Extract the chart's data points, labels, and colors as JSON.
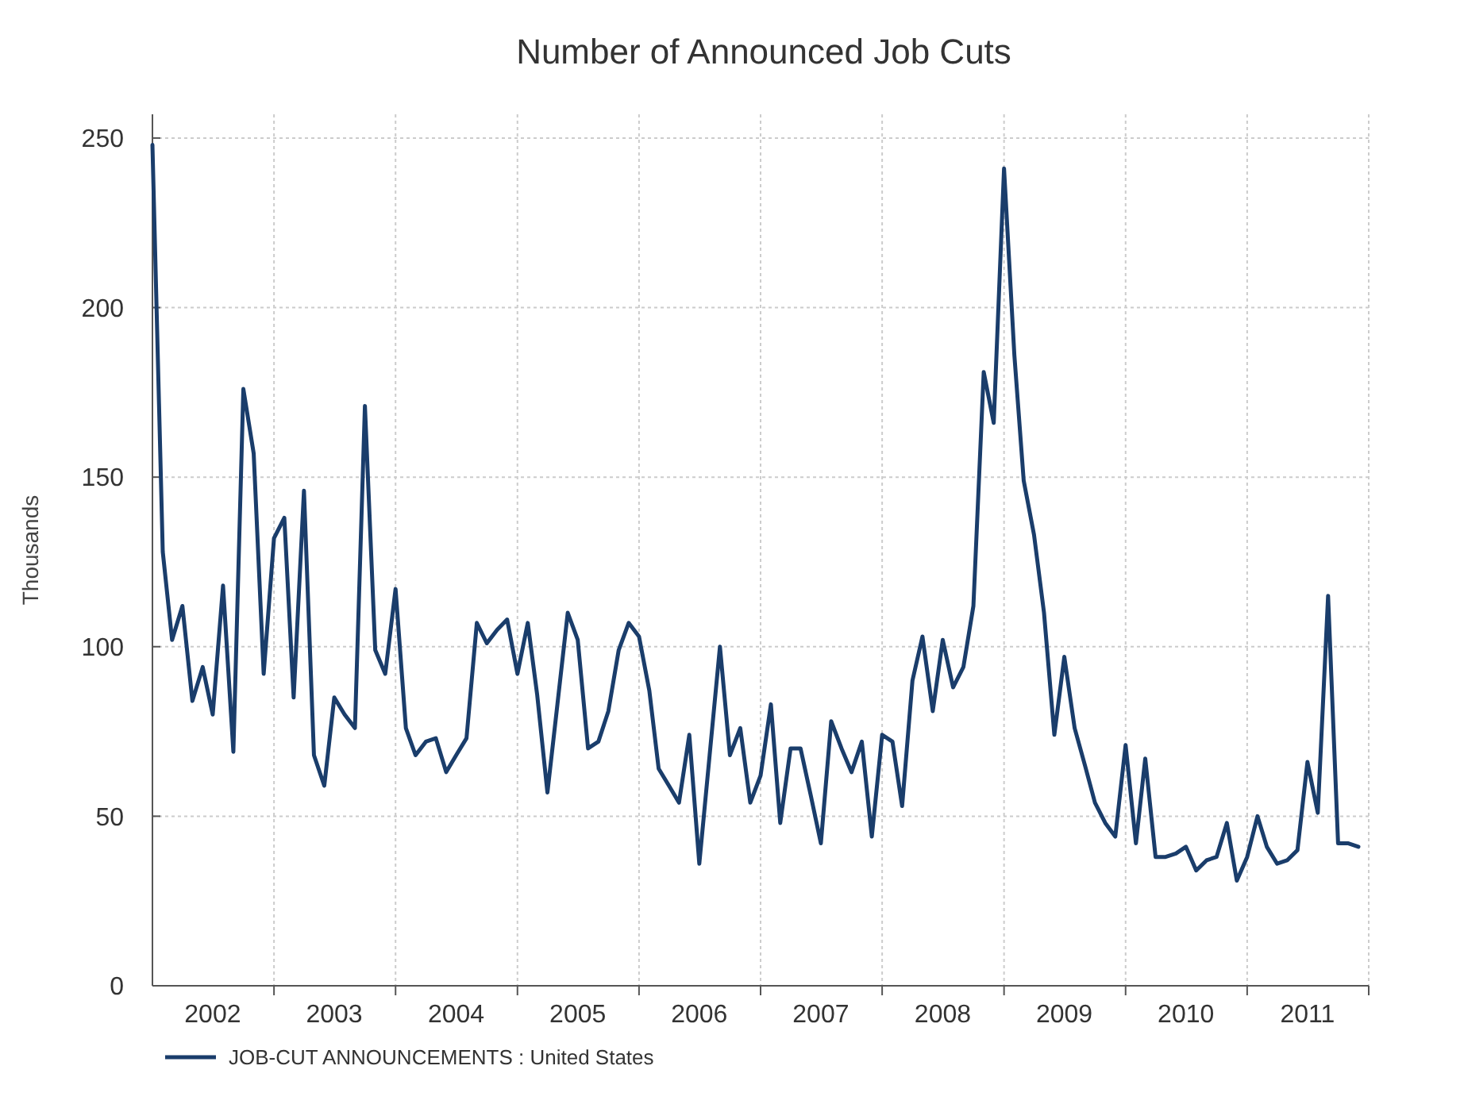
{
  "chart_data": {
    "type": "line",
    "title": "Number of Announced Job Cuts",
    "ylabel": "Thousands",
    "x": [
      "2002-01",
      "2002-02",
      "2002-03",
      "2002-04",
      "2002-05",
      "2002-06",
      "2002-07",
      "2002-08",
      "2002-09",
      "2002-10",
      "2002-11",
      "2002-12",
      "2003-01",
      "2003-02",
      "2003-03",
      "2003-04",
      "2003-05",
      "2003-06",
      "2003-07",
      "2003-08",
      "2003-09",
      "2003-10",
      "2003-11",
      "2003-12",
      "2004-01",
      "2004-02",
      "2004-03",
      "2004-04",
      "2004-05",
      "2004-06",
      "2004-07",
      "2004-08",
      "2004-09",
      "2004-10",
      "2004-11",
      "2004-12",
      "2005-01",
      "2005-02",
      "2005-03",
      "2005-04",
      "2005-05",
      "2005-06",
      "2005-07",
      "2005-08",
      "2005-09",
      "2005-10",
      "2005-11",
      "2005-12",
      "2006-01",
      "2006-02",
      "2006-03",
      "2006-04",
      "2006-05",
      "2006-06",
      "2006-07",
      "2006-08",
      "2006-09",
      "2006-10",
      "2006-11",
      "2006-12",
      "2007-01",
      "2007-02",
      "2007-03",
      "2007-04",
      "2007-05",
      "2007-06",
      "2007-07",
      "2007-08",
      "2007-09",
      "2007-10",
      "2007-11",
      "2007-12",
      "2008-01",
      "2008-02",
      "2008-03",
      "2008-04",
      "2008-05",
      "2008-06",
      "2008-07",
      "2008-08",
      "2008-09",
      "2008-10",
      "2008-11",
      "2008-12",
      "2009-01",
      "2009-02",
      "2009-03",
      "2009-04",
      "2009-05",
      "2009-06",
      "2009-07",
      "2009-08",
      "2009-09",
      "2009-10",
      "2009-11",
      "2009-12",
      "2010-01",
      "2010-02",
      "2010-03",
      "2010-04",
      "2010-05",
      "2010-06",
      "2010-07",
      "2010-08",
      "2010-09",
      "2010-10",
      "2010-11",
      "2010-12",
      "2011-01",
      "2011-02",
      "2011-03",
      "2011-04",
      "2011-05",
      "2011-06",
      "2011-07",
      "2011-08",
      "2011-09",
      "2011-10",
      "2011-11",
      "2011-12"
    ],
    "series": [
      {
        "name": "JOB-CUT ANNOUNCEMENTS : United States",
        "color": "#1a3d6b",
        "values": [
          248,
          128,
          102,
          112,
          84,
          94,
          80,
          118,
          69,
          176,
          157,
          92,
          132,
          138,
          85,
          146,
          68,
          59,
          85,
          80,
          76,
          171,
          99,
          92,
          117,
          76,
          68,
          72,
          73,
          63,
          68,
          73,
          107,
          101,
          105,
          108,
          92,
          107,
          86,
          57,
          83,
          110,
          102,
          70,
          72,
          81,
          99,
          107,
          103,
          87,
          64,
          59,
          54,
          74,
          36,
          68,
          100,
          68,
          76,
          54,
          62,
          83,
          48,
          70,
          70,
          56,
          42,
          78,
          70,
          63,
          72,
          44,
          74,
          72,
          53,
          90,
          103,
          81,
          102,
          88,
          94,
          112,
          181,
          166,
          241,
          186,
          149,
          133,
          110,
          74,
          97,
          76,
          65,
          54,
          48,
          44,
          71,
          42,
          67,
          38,
          38,
          39,
          41,
          34,
          37,
          38,
          48,
          31,
          38,
          50,
          41,
          36,
          37,
          40,
          66,
          51,
          115,
          42,
          42,
          41
        ]
      }
    ],
    "xlim": [
      "2002-01",
      "2012-01"
    ],
    "xticks": [
      {
        "value": "2002-07",
        "label": "2002"
      },
      {
        "value": "2003-01",
        "label": null
      },
      {
        "value": "2003-07",
        "label": "2003"
      },
      {
        "value": "2004-01",
        "label": null
      },
      {
        "value": "2004-07",
        "label": "2004"
      },
      {
        "value": "2005-01",
        "label": null
      },
      {
        "value": "2005-07",
        "label": "2005"
      },
      {
        "value": "2006-01",
        "label": null
      },
      {
        "value": "2006-07",
        "label": "2006"
      },
      {
        "value": "2007-01",
        "label": null
      },
      {
        "value": "2007-07",
        "label": "2007"
      },
      {
        "value": "2008-01",
        "label": null
      },
      {
        "value": "2008-07",
        "label": "2008"
      },
      {
        "value": "2009-01",
        "label": null
      },
      {
        "value": "2009-07",
        "label": "2009"
      },
      {
        "value": "2010-01",
        "label": null
      },
      {
        "value": "2010-07",
        "label": "2010"
      },
      {
        "value": "2011-01",
        "label": null
      },
      {
        "value": "2011-07",
        "label": "2011"
      },
      {
        "value": "2012-01",
        "label": null
      }
    ],
    "ylim": [
      0,
      257
    ],
    "yticks": [
      0,
      50,
      100,
      150,
      200,
      250
    ],
    "grid": true,
    "legend": "bottom left",
    "line_style": "solid",
    "marker": "none"
  }
}
